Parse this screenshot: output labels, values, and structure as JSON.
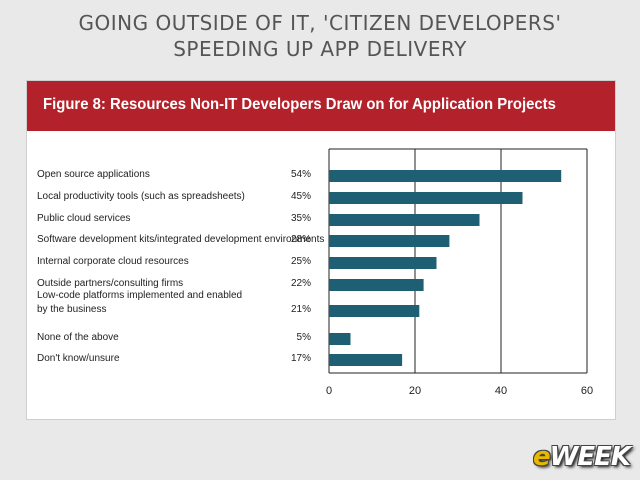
{
  "slide": {
    "title_line1": "GOING OUTSIDE OF IT, 'CITIZEN DEVELOPERS'",
    "title_line2": "SPEEDING UP APP DELIVERY"
  },
  "brand": {
    "logo_prefix": "e",
    "logo_rest": "WEEK"
  },
  "colors": {
    "header": "#b3212b",
    "bar": "#1f5f73",
    "background": "#e9e9e9"
  },
  "chart_data": {
    "type": "bar",
    "orientation": "horizontal",
    "title": "Figure 8: Resources Non-IT Developers Draw on for Application Projects",
    "categories": [
      [
        "Open source applications"
      ],
      [
        "Local productivity tools (such as spreadsheets)"
      ],
      [
        "Public cloud services"
      ],
      [
        "Software development kits/integrated development environments"
      ],
      [
        "Internal corporate cloud resources"
      ],
      [
        "Outside partners/consulting firms"
      ],
      [
        "Low-code platforms implemented and enabled",
        "by the business"
      ],
      [
        "None of the above"
      ],
      [
        "Don't know/unsure"
      ]
    ],
    "values": [
      54,
      45,
      35,
      28,
      25,
      22,
      21,
      5,
      17
    ],
    "value_labels": [
      "54%",
      "45%",
      "35%",
      "28%",
      "25%",
      "22%",
      "21%",
      "5%",
      "17%"
    ],
    "xlim": [
      0,
      60
    ],
    "xticks": [
      "0",
      "20",
      "40",
      "60"
    ],
    "grid": true,
    "legend": "none"
  }
}
